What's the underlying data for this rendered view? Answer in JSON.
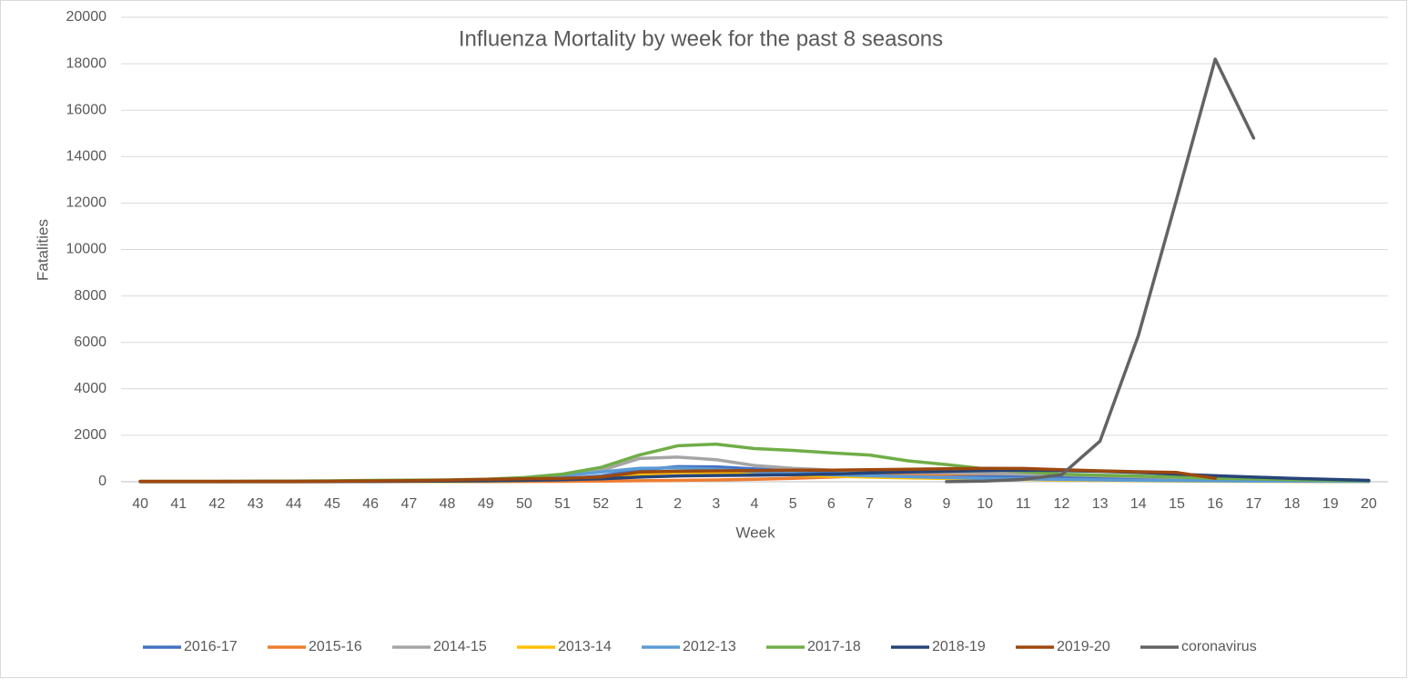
{
  "chart_data": {
    "type": "line",
    "title": "Influenza Mortality by week for the past 8 seasons",
    "x_label": "Week",
    "y_label": "Fatalities",
    "categories": [
      "40",
      "41",
      "42",
      "43",
      "44",
      "45",
      "46",
      "47",
      "48",
      "49",
      "50",
      "51",
      "52",
      "1",
      "2",
      "3",
      "4",
      "5",
      "6",
      "7",
      "8",
      "9",
      "10",
      "11",
      "12",
      "13",
      "14",
      "15",
      "16",
      "17",
      "18",
      "19",
      "20"
    ],
    "ylim": [
      0,
      20000
    ],
    "yticks": [
      0,
      2000,
      4000,
      6000,
      8000,
      10000,
      12000,
      14000,
      16000,
      18000,
      20000
    ],
    "grid": true,
    "legend": "bottom",
    "series": [
      {
        "name": "2016-17",
        "color": "#4472c4",
        "values": [
          5,
          5,
          5,
          5,
          5,
          8,
          10,
          15,
          20,
          40,
          70,
          120,
          250,
          500,
          650,
          640,
          550,
          480,
          420,
          380,
          340,
          300,
          260,
          220,
          190,
          160,
          130,
          100,
          80,
          60,
          40,
          30,
          20
        ]
      },
      {
        "name": "2015-16",
        "color": "#ed7d31",
        "values": [
          2,
          2,
          2,
          3,
          3,
          4,
          5,
          6,
          8,
          10,
          15,
          20,
          30,
          45,
          60,
          80,
          110,
          150,
          200,
          260,
          300,
          330,
          350,
          340,
          300,
          260,
          220,
          180,
          140,
          100,
          70,
          50,
          30
        ]
      },
      {
        "name": "2014-15",
        "color": "#a5a5a5",
        "values": [
          10,
          10,
          12,
          15,
          18,
          22,
          30,
          45,
          60,
          90,
          140,
          220,
          480,
          1000,
          1060,
          950,
          700,
          580,
          500,
          440,
          400,
          380,
          360,
          330,
          300,
          260,
          220,
          180,
          140,
          110,
          80,
          60,
          40
        ]
      },
      {
        "name": "2013-14",
        "color": "#ffc000",
        "values": [
          3,
          3,
          3,
          4,
          5,
          6,
          8,
          10,
          15,
          25,
          50,
          100,
          200,
          330,
          400,
          390,
          340,
          290,
          240,
          200,
          170,
          140,
          120,
          100,
          80,
          60,
          45,
          35,
          25,
          20,
          15,
          10,
          8
        ]
      },
      {
        "name": "2012-13",
        "color": "#5b9bd5",
        "values": [
          5,
          5,
          5,
          6,
          8,
          10,
          15,
          25,
          40,
          70,
          140,
          250,
          420,
          580,
          600,
          540,
          430,
          360,
          300,
          260,
          220,
          180,
          150,
          120,
          100,
          80,
          60,
          50,
          40,
          30,
          25,
          20,
          15
        ]
      },
      {
        "name": "2017-18",
        "color": "#70ad47",
        "values": [
          20,
          20,
          20,
          25,
          30,
          40,
          60,
          70,
          80,
          110,
          180,
          330,
          620,
          1150,
          1550,
          1620,
          1430,
          1350,
          1240,
          1150,
          900,
          740,
          560,
          430,
          330,
          280,
          250,
          200,
          150,
          120,
          90,
          60,
          40
        ]
      },
      {
        "name": "2018-19",
        "color": "#264478",
        "values": [
          10,
          10,
          10,
          10,
          12,
          14,
          18,
          22,
          30,
          40,
          60,
          90,
          130,
          200,
          250,
          270,
          280,
          300,
          330,
          380,
          420,
          450,
          480,
          500,
          480,
          450,
          400,
          330,
          260,
          200,
          150,
          100,
          60
        ]
      },
      {
        "name": "2019-20",
        "color": "#9e480e",
        "values": [
          15,
          15,
          15,
          18,
          20,
          25,
          35,
          50,
          70,
          100,
          130,
          150,
          200,
          420,
          450,
          470,
          480,
          500,
          500,
          520,
          540,
          560,
          580,
          570,
          520,
          470,
          430,
          400,
          150,
          null,
          null,
          null,
          null
        ]
      },
      {
        "name": "coronavirus",
        "color": "#636363",
        "values": [
          null,
          null,
          null,
          null,
          null,
          null,
          null,
          null,
          null,
          null,
          null,
          null,
          null,
          null,
          null,
          null,
          null,
          null,
          null,
          null,
          null,
          5,
          30,
          100,
          300,
          1750,
          6300,
          12200,
          18200,
          14800,
          null,
          null,
          null
        ]
      }
    ]
  }
}
